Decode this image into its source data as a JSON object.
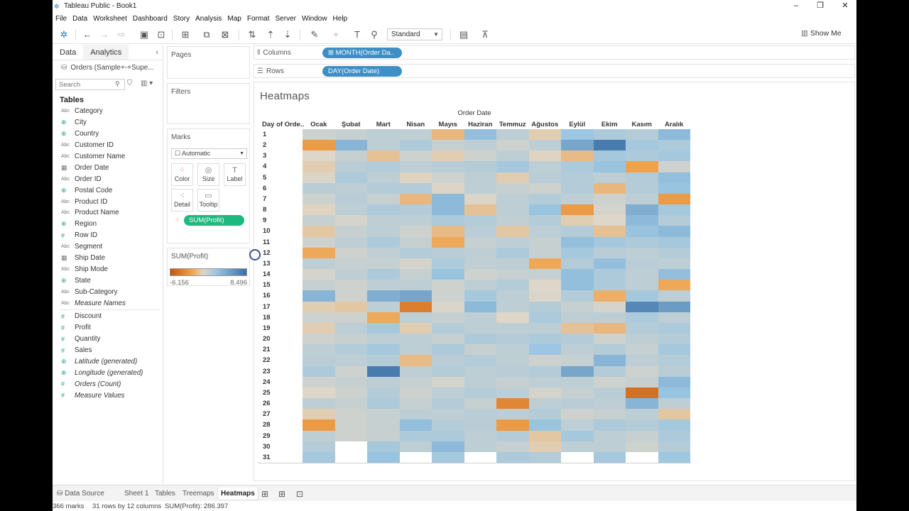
{
  "window": {
    "title": "Tableau Public - Book1",
    "minimize": "–",
    "restore": "❐",
    "close": "✕"
  },
  "menu": [
    "File",
    "Data",
    "Worksheet",
    "Dashboard",
    "Story",
    "Analysis",
    "Map",
    "Format",
    "Server",
    "Window",
    "Help"
  ],
  "toolbar": {
    "fit_select": "Standard",
    "show_me": "Show Me"
  },
  "data_pane": {
    "tabs": [
      "Data",
      "Analytics"
    ],
    "datasource": "Orders (Sample+-+Supe...",
    "search_placeholder": "Search",
    "tables_heading": "Tables",
    "dimensions": [
      {
        "type": "Abc",
        "kind": "dim",
        "name": "Category"
      },
      {
        "type": "⊕",
        "kind": "geo",
        "name": "City"
      },
      {
        "type": "⊕",
        "kind": "geo",
        "name": "Country"
      },
      {
        "type": "Abc",
        "kind": "dim",
        "name": "Customer ID"
      },
      {
        "type": "Abc",
        "kind": "dim",
        "name": "Customer Name"
      },
      {
        "type": "▦",
        "kind": "date",
        "name": "Order Date"
      },
      {
        "type": "Abc",
        "kind": "dim",
        "name": "Order ID"
      },
      {
        "type": "⊕",
        "kind": "geo",
        "name": "Postal Code"
      },
      {
        "type": "Abc",
        "kind": "dim",
        "name": "Product ID"
      },
      {
        "type": "Abc",
        "kind": "dim",
        "name": "Product Name"
      },
      {
        "type": "⊕",
        "kind": "geo",
        "name": "Region"
      },
      {
        "type": "#",
        "kind": "num",
        "name": "Row ID"
      },
      {
        "type": "Abc",
        "kind": "dim",
        "name": "Segment"
      },
      {
        "type": "▦",
        "kind": "date",
        "name": "Ship Date"
      },
      {
        "type": "Abc",
        "kind": "dim",
        "name": "Ship Mode"
      },
      {
        "type": "⊕",
        "kind": "geo",
        "name": "State"
      },
      {
        "type": "Abc",
        "kind": "dim",
        "name": "Sub-Category"
      },
      {
        "type": "Abc",
        "kind": "dim",
        "name": "Measure Names",
        "italic": true
      }
    ],
    "measures": [
      {
        "type": "#",
        "kind": "num",
        "name": "Discount"
      },
      {
        "type": "#",
        "kind": "num",
        "name": "Profit"
      },
      {
        "type": "#",
        "kind": "num",
        "name": "Quantity"
      },
      {
        "type": "#",
        "kind": "num",
        "name": "Sales"
      },
      {
        "type": "⊕",
        "kind": "geo",
        "name": "Latitude (generated)",
        "italic": true
      },
      {
        "type": "⊕",
        "kind": "geo",
        "name": "Longitude (generated)",
        "italic": true
      },
      {
        "type": "#",
        "kind": "num",
        "name": "Orders (Count)",
        "italic": true
      },
      {
        "type": "#",
        "kind": "num",
        "name": "Measure Values",
        "italic": true
      }
    ]
  },
  "cards": {
    "pages": "Pages",
    "filters": "Filters",
    "marks": {
      "title": "Marks",
      "type": "Automatic",
      "buttons": [
        {
          "label": "Color",
          "icon": "color-icon",
          "glyph": "⁘"
        },
        {
          "label": "Size",
          "icon": "size-icon",
          "glyph": "◎"
        },
        {
          "label": "Label",
          "icon": "label-icon",
          "glyph": "T"
        },
        {
          "label": "Detail",
          "icon": "detail-icon",
          "glyph": "⁖"
        },
        {
          "label": "Tooltip",
          "icon": "tooltip-icon",
          "glyph": "▭"
        }
      ],
      "pill": "SUM(Profit)"
    },
    "legend": {
      "title": "SUM(Profit)",
      "min": "-6.156",
      "max": "8.496"
    }
  },
  "shelves": {
    "columns": {
      "label": "Columns",
      "pill": "MONTH(Order Da.."
    },
    "rows": {
      "label": "Rows",
      "pill": "DAY(Order Date)"
    }
  },
  "view": {
    "title": "Heatmaps",
    "column_header": "Order Date",
    "row_header": "Day of Orde..",
    "months": [
      "Ocak",
      "Şubat",
      "Mart",
      "Nisan",
      "Mayıs",
      "Haziran",
      "Temmuz",
      "Ağustos",
      "Eylül",
      "Ekim",
      "Kasım",
      "Aralık"
    ],
    "days": [
      "1",
      "2",
      "3",
      "4",
      "5",
      "6",
      "7",
      "8",
      "9",
      "10",
      "11",
      "12",
      "13",
      "14",
      "15",
      "16",
      "17",
      "18",
      "19",
      "20",
      "21",
      "22",
      "23",
      "24",
      "25",
      "26",
      "27",
      "28",
      "29",
      "30",
      "31"
    ]
  },
  "chart_data": {
    "type": "heatmap",
    "title": "Heatmaps",
    "x_field": "MONTH(Order Date)",
    "y_field": "DAY(Order Date)",
    "color_field": "SUM(Profit)",
    "color_range": [
      -6156,
      8496
    ],
    "palette": {
      "low": "#c2560f",
      "mid_low": "#f0a24b",
      "mid": "#ded6c8",
      "mid_high": "#9cc6e1",
      "high": "#3a6fa6"
    },
    "x": [
      "Ocak",
      "Şubat",
      "Mart",
      "Nisan",
      "Mayıs",
      "Haziran",
      "Temmuz",
      "Ağustos",
      "Eylül",
      "Ekim",
      "Kasım",
      "Aralık"
    ],
    "y": [
      1,
      2,
      3,
      4,
      5,
      6,
      7,
      8,
      9,
      10,
      11,
      12,
      13,
      14,
      15,
      16,
      17,
      18,
      19,
      20,
      21,
      22,
      23,
      24,
      25,
      26,
      27,
      28,
      29,
      30,
      31
    ],
    "values_normalized": [
      [
        0.5,
        0.52,
        0.55,
        0.54,
        0.35,
        0.68,
        0.55,
        0.42,
        0.65,
        0.6,
        0.58,
        0.7
      ],
      [
        0.25,
        0.72,
        0.55,
        0.6,
        0.52,
        0.55,
        0.5,
        0.55,
        0.78,
        0.95,
        0.62,
        0.6
      ],
      [
        0.45,
        0.52,
        0.38,
        0.5,
        0.42,
        0.5,
        0.55,
        0.44,
        0.36,
        0.62,
        0.6,
        0.62
      ],
      [
        0.42,
        0.56,
        0.58,
        0.55,
        0.56,
        0.58,
        0.62,
        0.55,
        0.6,
        0.66,
        0.28,
        0.5
      ],
      [
        0.46,
        0.6,
        0.55,
        0.44,
        0.5,
        0.55,
        0.42,
        0.56,
        0.58,
        0.55,
        0.58,
        0.68
      ],
      [
        0.56,
        0.55,
        0.58,
        0.58,
        0.46,
        0.55,
        0.52,
        0.5,
        0.58,
        0.35,
        0.58,
        0.66
      ],
      [
        0.5,
        0.56,
        0.52,
        0.35,
        0.7,
        0.46,
        0.55,
        0.58,
        0.55,
        0.5,
        0.55,
        0.25
      ],
      [
        0.44,
        0.55,
        0.6,
        0.58,
        0.7,
        0.38,
        0.55,
        0.66,
        0.25,
        0.48,
        0.75,
        0.62
      ],
      [
        0.52,
        0.48,
        0.55,
        0.55,
        0.6,
        0.58,
        0.54,
        0.58,
        0.42,
        0.45,
        0.7,
        0.58
      ],
      [
        0.4,
        0.52,
        0.55,
        0.5,
        0.36,
        0.56,
        0.4,
        0.55,
        0.58,
        0.38,
        0.66,
        0.7
      ],
      [
        0.5,
        0.55,
        0.6,
        0.52,
        0.3,
        0.52,
        0.55,
        0.52,
        0.68,
        0.62,
        0.6,
        0.62
      ],
      [
        0.3,
        0.5,
        0.54,
        0.58,
        0.56,
        0.55,
        0.6,
        0.52,
        0.62,
        0.56,
        0.55,
        0.58
      ],
      [
        0.55,
        0.52,
        0.52,
        0.48,
        0.6,
        0.54,
        0.55,
        0.3,
        0.58,
        0.68,
        0.56,
        0.55
      ],
      [
        0.48,
        0.55,
        0.6,
        0.52,
        0.66,
        0.5,
        0.52,
        0.52,
        0.68,
        0.6,
        0.55,
        0.68
      ],
      [
        0.52,
        0.5,
        0.55,
        0.55,
        0.5,
        0.55,
        0.58,
        0.45,
        0.68,
        0.6,
        0.55,
        0.3
      ],
      [
        0.72,
        0.5,
        0.75,
        0.78,
        0.5,
        0.62,
        0.55,
        0.46,
        0.58,
        0.32,
        0.62,
        0.55
      ],
      [
        0.42,
        0.4,
        0.55,
        0.15,
        0.46,
        0.7,
        0.55,
        0.58,
        0.52,
        0.48,
        0.9,
        0.82
      ],
      [
        0.5,
        0.5,
        0.3,
        0.55,
        0.52,
        0.55,
        0.45,
        0.6,
        0.55,
        0.55,
        0.6,
        0.55
      ],
      [
        0.42,
        0.55,
        0.62,
        0.42,
        0.58,
        0.55,
        0.55,
        0.55,
        0.38,
        0.35,
        0.58,
        0.6
      ],
      [
        0.5,
        0.52,
        0.55,
        0.55,
        0.52,
        0.6,
        0.58,
        0.6,
        0.58,
        0.5,
        0.55,
        0.58
      ],
      [
        0.55,
        0.58,
        0.62,
        0.55,
        0.6,
        0.52,
        0.55,
        0.65,
        0.55,
        0.58,
        0.52,
        0.62
      ],
      [
        0.56,
        0.55,
        0.58,
        0.36,
        0.56,
        0.58,
        0.55,
        0.5,
        0.52,
        0.72,
        0.55,
        0.58
      ],
      [
        0.6,
        0.5,
        0.95,
        0.55,
        0.58,
        0.55,
        0.56,
        0.58,
        0.78,
        0.58,
        0.5,
        0.56
      ],
      [
        0.5,
        0.52,
        0.55,
        0.52,
        0.48,
        0.55,
        0.52,
        0.55,
        0.55,
        0.5,
        0.52,
        0.7
      ],
      [
        0.45,
        0.5,
        0.58,
        0.5,
        0.55,
        0.58,
        0.55,
        0.48,
        0.52,
        0.56,
        0.1,
        0.66
      ],
      [
        0.55,
        0.52,
        0.6,
        0.52,
        0.58,
        0.52,
        0.18,
        0.55,
        0.56,
        0.55,
        0.72,
        0.55
      ],
      [
        0.42,
        0.5,
        0.52,
        0.55,
        0.55,
        0.56,
        0.55,
        0.58,
        0.5,
        0.52,
        0.55,
        0.4
      ],
      [
        0.25,
        0.5,
        0.52,
        0.68,
        0.58,
        0.56,
        0.25,
        0.66,
        0.55,
        0.6,
        0.58,
        0.62
      ],
      [
        0.55,
        0.5,
        0.52,
        0.6,
        0.6,
        0.55,
        0.58,
        0.4,
        0.62,
        0.55,
        0.52,
        0.6
      ],
      [
        0.58,
        null,
        0.62,
        0.55,
        0.7,
        0.55,
        0.52,
        0.42,
        0.55,
        0.55,
        0.5,
        0.58
      ],
      [
        0.62,
        null,
        0.66,
        null,
        0.62,
        null,
        0.6,
        0.58,
        null,
        0.62,
        null,
        0.64
      ]
    ]
  },
  "tabs": {
    "items": [
      "Data Source",
      "Sheet 1",
      "Tables",
      "Treemaps",
      "Heatmaps"
    ],
    "active": "Heatmaps"
  },
  "status": {
    "marks": "366 marks",
    "dims": "31 rows by 12 columns",
    "sum": "SUM(Profit): 286.397"
  }
}
